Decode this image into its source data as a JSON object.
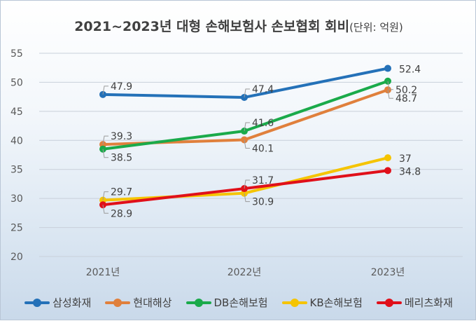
{
  "title": {
    "main": "2021~2023년 대형 손해보험사 손보협회 회비",
    "unit": "(단위: 억원)"
  },
  "chart_data": {
    "type": "line",
    "x": [
      "2021년",
      "2022년",
      "2023년"
    ],
    "series": [
      {
        "name": "삼성화재",
        "color": "#2471b8",
        "values": [
          47.9,
          47.4,
          52.4
        ]
      },
      {
        "name": "현대해상",
        "color": "#e0803c",
        "values": [
          39.3,
          40.1,
          48.7
        ]
      },
      {
        "name": "DB손해보험",
        "color": "#1aaa4a",
        "values": [
          38.5,
          41.6,
          50.2
        ]
      },
      {
        "name": "KB손해보험",
        "color": "#f5c400",
        "values": [
          29.7,
          30.9,
          37
        ]
      },
      {
        "name": "메리츠화재",
        "color": "#e0101a",
        "values": [
          28.9,
          31.7,
          34.8
        ]
      }
    ],
    "ylim": [
      20,
      55
    ],
    "yticks": [
      20,
      25,
      30,
      35,
      40,
      45,
      50,
      55
    ],
    "grid": true,
    "legend_position": "bottom"
  }
}
